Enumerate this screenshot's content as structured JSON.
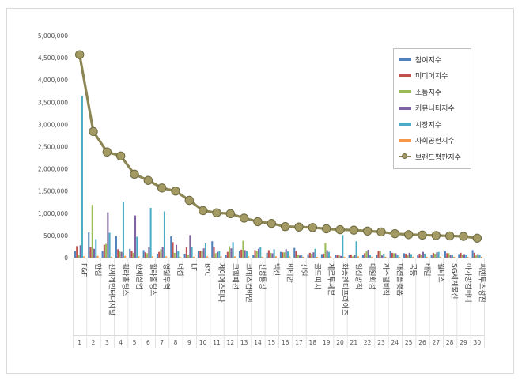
{
  "chart_data": {
    "type": "bar",
    "title": "",
    "xlabel": "",
    "ylabel": "",
    "ylim": [
      0,
      5000000
    ],
    "y_ticks": [
      "0",
      "500,000",
      "1,000,000",
      "1,500,000",
      "2,000,000",
      "2,500,000",
      "3,000,000",
      "3,500,000",
      "4,000,000",
      "4,500,000",
      "5,000,000"
    ],
    "ranks": [
      "1",
      "2",
      "3",
      "4",
      "5",
      "6",
      "7",
      "8",
      "9",
      "10",
      "11",
      "12",
      "13",
      "14",
      "15",
      "16",
      "17",
      "18",
      "19",
      "20",
      "21",
      "22",
      "23",
      "24",
      "25",
      "26",
      "27",
      "28",
      "29",
      "30"
    ],
    "categories": [
      "F&F",
      "한섬",
      "신세계인터내셔날",
      "휠라홀딩스",
      "한세실업",
      "휠라홀딩스",
      "영원무역",
      "더섬",
      "LF",
      "BYC",
      "제이에스티나",
      "코웰패션",
      "코데즈컴바인",
      "신성통상",
      "백산",
      "비비안",
      "신원",
      "골드피치",
      "제로투세븐",
      "화승엔터프라이즈",
      "일신방직",
      "대원화성",
      "까스텔바작",
      "패션플랫폼",
      "국동",
      "배럴",
      "월비스",
      "SG세계물산",
      "아가방컴퍼니",
      "씨엔투스성진"
    ],
    "series": [
      {
        "name": "참여지수",
        "color": "#4f81bd",
        "values": [
          150000,
          570000,
          150000,
          480000,
          200000,
          170000,
          90000,
          480000,
          90000,
          160000,
          370000,
          70000,
          160000,
          60000,
          110000,
          130000,
          220000,
          80000,
          80000,
          70000,
          60000,
          60000,
          60000,
          150000,
          100000,
          70000,
          60000,
          160000,
          80000,
          170000
        ]
      },
      {
        "name": "미디어지수",
        "color": "#c0504d",
        "values": [
          260000,
          230000,
          290000,
          190000,
          160000,
          120000,
          130000,
          350000,
          230000,
          150000,
          250000,
          130000,
          180000,
          170000,
          170000,
          120000,
          150000,
          110000,
          90000,
          60000,
          70000,
          100000,
          150000,
          110000,
          90000,
          90000,
          110000,
          100000,
          110000,
          110000
        ]
      },
      {
        "name": "소통지수",
        "color": "#9bbb59",
        "values": [
          60000,
          1190000,
          310000,
          140000,
          110000,
          100000,
          190000,
          110000,
          60000,
          160000,
          100000,
          260000,
          380000,
          150000,
          110000,
          120000,
          60000,
          90000,
          330000,
          50000,
          30000,
          140000,
          150000,
          100000,
          50000,
          60000,
          90000,
          100000,
          60000,
          50000
        ]
      },
      {
        "name": "커뮤니티지수",
        "color": "#8064a2",
        "values": [
          280000,
          200000,
          1020000,
          130000,
          950000,
          230000,
          240000,
          290000,
          510000,
          210000,
          130000,
          210000,
          170000,
          200000,
          100000,
          190000,
          50000,
          120000,
          170000,
          40000,
          60000,
          180000,
          50000,
          100000,
          110000,
          130000,
          120000,
          60000,
          80000,
          80000
        ]
      },
      {
        "name": "시장지수",
        "color": "#4bacc6",
        "values": [
          3640000,
          420000,
          560000,
          1260000,
          470000,
          1120000,
          1040000,
          160000,
          250000,
          320000,
          150000,
          350000,
          150000,
          240000,
          190000,
          140000,
          60000,
          200000,
          130000,
          510000,
          370000,
          60000,
          90000,
          60000,
          80000,
          90000,
          130000,
          70000,
          70000,
          70000
        ]
      },
      {
        "name": "사회공헌지수",
        "color": "#f79646",
        "values": [
          30000,
          40000,
          20000,
          40000,
          30000,
          30000,
          30000,
          20000,
          20000,
          30000,
          30000,
          30000,
          30000,
          20000,
          30000,
          30000,
          20000,
          20000,
          30000,
          20000,
          30000,
          20000,
          20000,
          20000,
          20000,
          20000,
          20000,
          20000,
          20000,
          20000
        ]
      }
    ],
    "line_series": {
      "name": "브랜드평판지수",
      "color": "#8c8654",
      "values": [
        4570000,
        2840000,
        2380000,
        2290000,
        1880000,
        1740000,
        1570000,
        1500000,
        1290000,
        1060000,
        1010000,
        990000,
        890000,
        810000,
        770000,
        700000,
        690000,
        680000,
        650000,
        630000,
        620000,
        600000,
        580000,
        540000,
        520000,
        510000,
        500000,
        490000,
        480000,
        440000
      ]
    },
    "legend_position": "top-right",
    "grid": false
  }
}
